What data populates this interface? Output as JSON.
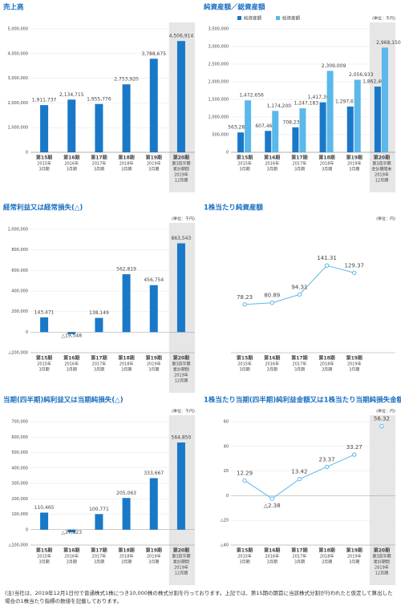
{
  "chart_data": [
    {
      "type": "bar",
      "title": "売上高",
      "color": "#1a78c8",
      "highlight": 5,
      "categories": [
        [
          "第15期",
          "2015年",
          "3月期"
        ],
        [
          "第16期",
          "2016年",
          "3月期"
        ],
        [
          "第17期",
          "2017年",
          "3月期"
        ],
        [
          "第18期",
          "2018年",
          "3月期"
        ],
        [
          "第19期",
          "2019年",
          "3月期"
        ],
        [
          "第20期",
          "第3四半期",
          "累計期間",
          "2019年",
          "12月期"
        ]
      ],
      "values": [
        1911737,
        2134715,
        1955776,
        2753920,
        3788675,
        4506914
      ],
      "value_labels": [
        "1,911,737",
        "2,134,715",
        "1,955,776",
        "2,753,920",
        "3,788,675",
        "4,506,914"
      ],
      "ylim": [
        0,
        5000000
      ],
      "yticks": [
        0,
        {
          "value": 1000000,
          "label": "1,000,000"
        },
        {
          "value": 2000000,
          "label": "2,000,000"
        },
        {
          "value": 3000000,
          "label": "3,000,000"
        },
        {
          "value": 4000000,
          "label": "4,000,000"
        },
        {
          "value": 5000000,
          "label": "5,000,000"
        }
      ]
    },
    {
      "type": "bar",
      "title": "純資産額／総資産額",
      "unit": "(単位：千円)",
      "highlight": 5,
      "categories": [
        [
          "第15期",
          "2015年",
          "3月期"
        ],
        [
          "第16期",
          "2016年",
          "3月期"
        ],
        [
          "第17期",
          "2017年",
          "3月期"
        ],
        [
          "第18期",
          "2018年",
          "3月期"
        ],
        [
          "第19期",
          "2019年",
          "3月期"
        ],
        [
          "第20期",
          "第3四半期",
          "会計期間末",
          "2019年",
          "12月期"
        ]
      ],
      "series": [
        {
          "name": "純資産額",
          "color": "#1a78c8",
          "values": [
            563289,
            607465,
            708237,
            1417300,
            1297611,
            1862461
          ],
          "value_labels": [
            "563,289",
            "607,465",
            "708,237",
            "1,417,300",
            "1,297,611",
            "1,862,461"
          ]
        },
        {
          "name": "総資産額",
          "color": "#5ab8ea",
          "values": [
            1472656,
            1174200,
            1247183,
            2309009,
            2056933,
            2968150
          ],
          "value_labels": [
            "1,472,656",
            "1,174,200",
            "1,247,183",
            "2,309,009",
            "2,056,933",
            "2,968,150"
          ]
        }
      ],
      "ylim": [
        0,
        3500000
      ],
      "yticks": [
        0,
        {
          "value": 500000,
          "label": "500,000"
        },
        {
          "value": 1000000,
          "label": "1,000,000"
        },
        {
          "value": 1500000,
          "label": "1,500,000"
        },
        {
          "value": 2000000,
          "label": "2,000,000"
        },
        {
          "value": 2500000,
          "label": "2,500,000"
        },
        {
          "value": 3000000,
          "label": "3,000,000"
        },
        {
          "value": 3500000,
          "label": "3,500,000"
        }
      ]
    },
    {
      "type": "bar",
      "title": "経常利益又は経常損失(△)",
      "unit": "(単位：千円)",
      "color": "#1a78c8",
      "highlight": 5,
      "categories": [
        [
          "第15期",
          "2015年",
          "3月期"
        ],
        [
          "第16期",
          "2016年",
          "3月期"
        ],
        [
          "第17期",
          "2017年",
          "3月期"
        ],
        [
          "第18期",
          "2018年",
          "3月期"
        ],
        [
          "第19期",
          "2019年",
          "3月期"
        ],
        [
          "第20期",
          "第3四半期",
          "累計期間",
          "2019年",
          "12月期"
        ]
      ],
      "values": [
        143471,
        -19548,
        138149,
        562819,
        456754,
        863543
      ],
      "value_labels": [
        "143,471",
        "△19,548",
        "138,149",
        "562,819",
        "456,754",
        "863,543"
      ],
      "ylim": [
        -200000,
        1000000
      ],
      "yticks": [
        {
          "value": -200000,
          "label": "△200,000"
        },
        0,
        {
          "value": 200000,
          "label": "200,000"
        },
        {
          "value": 400000,
          "label": "400,000"
        },
        {
          "value": 600000,
          "label": "600,000"
        },
        {
          "value": 800000,
          "label": "800,000"
        },
        {
          "value": 1000000,
          "label": "1,000,000"
        }
      ]
    },
    {
      "type": "line",
      "title": "1株当たり純資産額",
      "unit": "(単位：円)",
      "color": "#5ab8ea",
      "categories": [
        [
          "第15期",
          "2015年",
          "3月期"
        ],
        [
          "第16期",
          "2016年",
          "3月期"
        ],
        [
          "第17期",
          "2017年",
          "3月期"
        ],
        [
          "第18期",
          "2018年",
          "3月期"
        ],
        [
          "第19期",
          "2019年",
          "3月期"
        ]
      ],
      "values": [
        78.23,
        80.89,
        94.31,
        141.31,
        129.37
      ],
      "ylim": [
        0,
        200
      ]
    },
    {
      "type": "bar",
      "title": "当期(四半期)純利益又は当期純損失(△)",
      "unit": "(単位：千円)",
      "color": "#1a78c8",
      "highlight": 5,
      "categories": [
        [
          "第15期",
          "2015年",
          "3月期"
        ],
        [
          "第16期",
          "2016年",
          "3月期"
        ],
        [
          "第17期",
          "2017年",
          "3月期"
        ],
        [
          "第18期",
          "2018年",
          "3月期"
        ],
        [
          "第19期",
          "2019年",
          "3月期"
        ],
        [
          "第20期",
          "第3四半期",
          "累計期間",
          "2019年",
          "12月期"
        ]
      ],
      "values": [
        110465,
        -17823,
        100771,
        205063,
        333667,
        564850
      ],
      "value_labels": [
        "110,465",
        "△17,823",
        "100,771",
        "205,063",
        "333,667",
        "564,850"
      ],
      "ylim": [
        -100000,
        700000
      ],
      "yticks": [
        {
          "value": -100000,
          "label": "△100,000"
        },
        0,
        {
          "value": 100000,
          "label": "100,000"
        },
        {
          "value": 200000,
          "label": "200,000"
        },
        {
          "value": 300000,
          "label": "300,000"
        },
        {
          "value": 400000,
          "label": "400,000"
        },
        {
          "value": 500000,
          "label": "500,000"
        },
        {
          "value": 600000,
          "label": "600,000"
        },
        {
          "value": 700000,
          "label": "700,000"
        }
      ]
    },
    {
      "type": "line",
      "title": "1株当たり当期(四半期)純利益金額又は1株当たり当期純損失金額(△)",
      "unit": "(単位：円)",
      "color": "#5ab8ea",
      "highlight": 5,
      "categories": [
        [
          "第15期",
          "2015年",
          "3月期"
        ],
        [
          "第16期",
          "2016年",
          "3月期"
        ],
        [
          "第17期",
          "2017年",
          "3月期"
        ],
        [
          "第18期",
          "2018年",
          "3月期"
        ],
        [
          "第19期",
          "2019年",
          "3月期"
        ],
        [
          "第20期",
          "第3四半期",
          "累計期間",
          "2019年",
          "12月期"
        ]
      ],
      "values": [
        12.29,
        -2.38,
        13.42,
        23.37,
        33.27,
        56.32
      ],
      "value_labels": [
        "12.29",
        "△2.38",
        "13.42",
        "23.37",
        "33.27",
        "56.32"
      ],
      "ylim": [
        -40,
        60
      ],
      "yticks": [
        {
          "value": -40,
          "label": "△40"
        },
        {
          "value": -20,
          "label": "△20"
        },
        0,
        20,
        40,
        60
      ]
    }
  ],
  "footnote": "(注)当社は、2019年12月1日付で普通株式1株につき10,000株の株式分割を行っております。上記では、第15期の期首に当該株式分割が行われたと仮定して算出した場合の1株当たり指標の数値を記載しております。"
}
